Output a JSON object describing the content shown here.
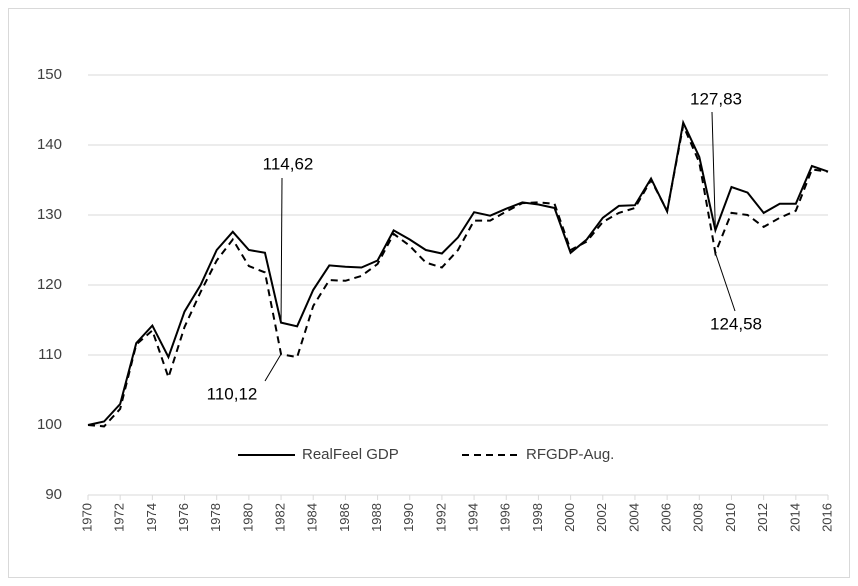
{
  "chart_data": {
    "type": "line",
    "x": [
      1970,
      1971,
      1972,
      1973,
      1974,
      1975,
      1976,
      1977,
      1978,
      1979,
      1980,
      1981,
      1982,
      1983,
      1984,
      1985,
      1986,
      1987,
      1988,
      1989,
      1990,
      1991,
      1992,
      1993,
      1994,
      1995,
      1996,
      1997,
      1998,
      1999,
      2000,
      2001,
      2002,
      2003,
      2004,
      2005,
      2006,
      2007,
      2008,
      2009,
      2010,
      2011,
      2012,
      2013,
      2014,
      2015,
      2016
    ],
    "series": [
      {
        "name": "RealFeel GDP",
        "color": "#000000",
        "dash": "solid",
        "values": [
          100,
          100.5,
          103,
          111.7,
          114.2,
          109.7,
          116.2,
          120,
          125,
          127.6,
          125,
          124.6,
          114.62,
          114.1,
          119.3,
          122.8,
          122.6,
          122.5,
          123.5,
          127.8,
          126.5,
          125,
          124.5,
          126.8,
          130.4,
          129.9,
          130.9,
          131.8,
          131.5,
          131,
          124.6,
          126.5,
          129.6,
          131.3,
          131.4,
          135.2,
          130.5,
          143.2,
          138.3,
          127.83,
          134,
          133.2,
          130.3,
          131.6,
          131.6,
          137,
          136.2
        ]
      },
      {
        "name": "RFGDP-Aug.",
        "color": "#000000",
        "dash": "dashed",
        "values": [
          100,
          99.8,
          102.3,
          111.5,
          113.5,
          106.8,
          114,
          119,
          123.5,
          126.5,
          122.7,
          121.8,
          110.12,
          109.7,
          117,
          120.7,
          120.6,
          121.3,
          123,
          127.3,
          125.6,
          123.2,
          122.5,
          125,
          129.2,
          129.2,
          130.5,
          131.7,
          131.8,
          131.6,
          125,
          126.2,
          129,
          130.3,
          131,
          135,
          130.6,
          142.8,
          137.5,
          124.58,
          130.3,
          130,
          128.3,
          129.6,
          130.6,
          136.5,
          136.2
        ]
      }
    ],
    "xlim": [
      1970,
      2016
    ],
    "xticks": [
      1970,
      1972,
      1974,
      1976,
      1978,
      1980,
      1982,
      1984,
      1986,
      1988,
      1990,
      1992,
      1994,
      1996,
      1998,
      2000,
      2002,
      2004,
      2006,
      2008,
      2010,
      2012,
      2014,
      2016
    ],
    "ylim": [
      90,
      150
    ],
    "yticks": [
      90,
      100,
      110,
      120,
      130,
      140,
      150
    ],
    "grid": true,
    "legend": "bottom",
    "annotations": [
      {
        "text": "114,62",
        "x": 1982,
        "y": 114.62
      },
      {
        "text": "110,12",
        "x": 1982,
        "y": 110.12
      },
      {
        "text": "127,83",
        "x": 2009,
        "y": 127.83
      },
      {
        "text": "124,58",
        "x": 2009,
        "y": 124.58
      }
    ]
  }
}
